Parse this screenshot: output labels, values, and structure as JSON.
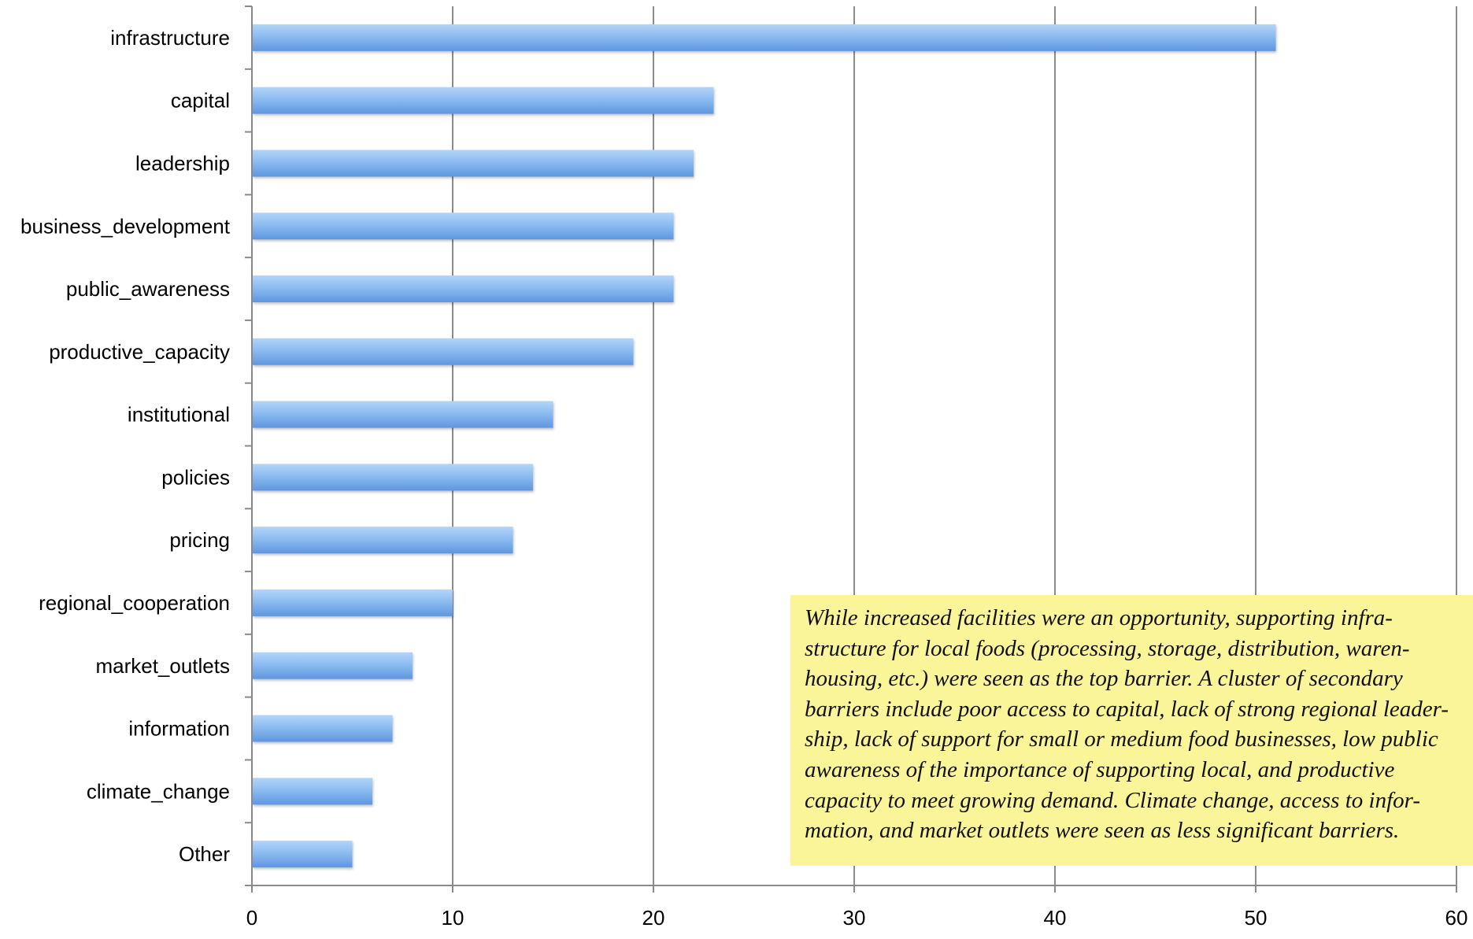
{
  "chart_data": {
    "type": "bar",
    "orientation": "horizontal",
    "categories": [
      "infrastructure",
      "capital",
      "leadership",
      "business_development",
      "public_awareness",
      "productive_capacity",
      "institutional",
      "policies",
      "pricing",
      "regional_cooperation",
      "market_outlets",
      "information",
      "climate_change",
      "Other"
    ],
    "values": [
      51,
      23,
      22,
      21,
      21,
      19,
      15,
      14,
      13,
      10,
      8,
      7,
      6,
      5
    ],
    "xlim": [
      0,
      60
    ],
    "x_ticks": [
      0,
      10,
      20,
      30,
      40,
      50,
      60
    ],
    "x_tick_labels": [
      "0",
      "10",
      "20",
      "30",
      "40",
      "50",
      "60"
    ],
    "grid": "vertical",
    "title": "",
    "xlabel": "",
    "ylabel": "",
    "bar_color": "#7fb2ec",
    "legend": "none"
  },
  "annotation": {
    "lines": [
      "While increased facilities were an opportunity, supporting infra-",
      "structure for local foods (processing, storage, distribution, waren-",
      "housing, etc.) were seen as the top barrier. A cluster of secondary",
      "barriers include poor access to capital, lack of strong regional leader-",
      "ship, lack of support for small or medium food businesses, low public",
      "awareness of the importance of supporting local, and productive",
      "capacity to meet growing demand. Climate change, access to infor-",
      "mation, and market outlets were seen as less significant barriers."
    ],
    "background": "#fbf59a"
  }
}
